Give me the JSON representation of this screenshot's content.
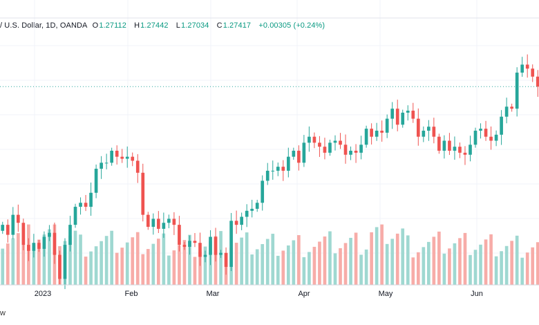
{
  "legend": {
    "symbol": "/ U.S. Dollar, 1D, OANDA",
    "open_label": "O",
    "open": "1.27112",
    "high_label": "H",
    "high": "1.27442",
    "low_label": "L",
    "low": "1.27034",
    "close_label": "C",
    "close": "1.27417",
    "change": "+0.00305 (+0.24%)"
  },
  "watermark": "w",
  "colors": {
    "up": "#26a69a",
    "down": "#ef5350",
    "vol_up": "#9fd8d1",
    "vol_down": "#f7aca8",
    "last_line": "#26a69a"
  },
  "chart_data": {
    "type": "candlestick",
    "x_ticks": [
      "2023",
      "Feb",
      "Mar",
      "Apr",
      "May",
      "Jun"
    ],
    "last_price": 1.274,
    "ylim": [
      1.175,
      1.3
    ],
    "close": [
      1.205,
      1.2,
      1.21,
      1.206,
      1.195,
      1.192,
      1.196,
      1.193,
      1.199,
      1.201,
      1.19,
      1.178,
      1.195,
      1.205,
      1.214,
      1.216,
      1.214,
      1.221,
      1.233,
      1.236,
      1.236,
      1.242,
      1.239,
      1.238,
      1.239,
      1.237,
      1.231,
      1.21,
      1.204,
      1.208,
      1.203,
      1.206,
      1.208,
      1.205,
      1.195,
      1.194,
      1.197,
      1.196,
      1.189,
      1.19,
      1.199,
      1.19,
      1.191,
      1.184,
      1.207,
      1.205,
      1.209,
      1.212,
      1.213,
      1.216,
      1.227,
      1.232,
      1.232,
      1.234,
      1.232,
      1.239,
      1.242,
      1.236,
      1.246,
      1.249,
      1.246,
      1.244,
      1.241,
      1.246,
      1.247,
      1.245,
      1.24,
      1.242,
      1.241,
      1.245,
      1.253,
      1.249,
      1.252,
      1.251,
      1.258,
      1.263,
      1.255,
      1.261,
      1.262,
      1.258,
      1.249,
      1.252,
      1.254,
      1.249,
      1.242,
      1.247,
      1.242,
      1.244,
      1.241,
      1.24,
      1.245,
      1.252,
      1.253,
      1.249,
      1.247,
      1.25,
      1.259,
      1.264,
      1.263,
      1.281,
      1.285,
      1.283,
      1.279,
      1.274
    ]
  }
}
